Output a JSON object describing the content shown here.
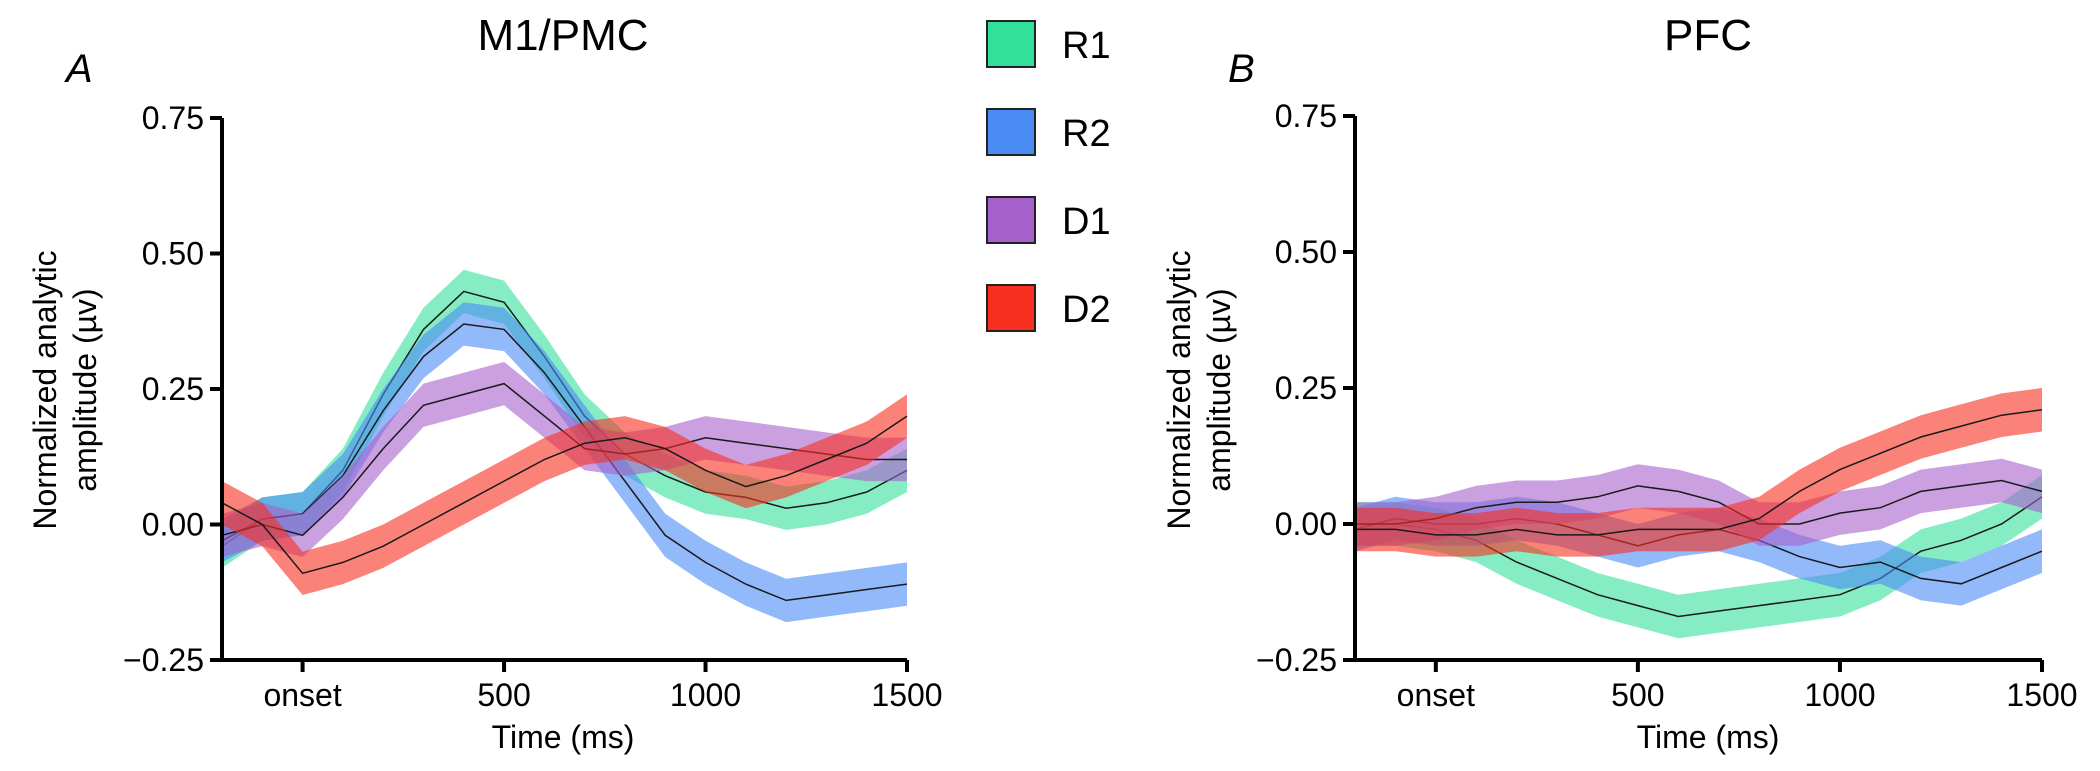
{
  "legend": [
    {
      "label": "R1",
      "color": "#33e09b"
    },
    {
      "label": "R2",
      "color": "#4a8af5"
    },
    {
      "label": "D1",
      "color": "#a660cc"
    },
    {
      "label": "D2",
      "color": "#f82e1e"
    }
  ],
  "chart_data": [
    {
      "type": "line",
      "panel_letter": "A",
      "title": "M1/PMC",
      "xlabel": "Time (ms)",
      "ylabel_line1": "Normalized analytic",
      "ylabel_line2": "amplitude (µv)",
      "xlim": [
        -200,
        1500
      ],
      "ylim": [
        -0.25,
        0.75
      ],
      "x_ticks": [
        {
          "value": 0,
          "label": "onset"
        },
        {
          "value": 500,
          "label": "500"
        },
        {
          "value": 1000,
          "label": "1000"
        },
        {
          "value": 1500,
          "label": "1500"
        }
      ],
      "y_ticks": [
        {
          "value": 0.75,
          "label": "0.75"
        },
        {
          "value": 0.5,
          "label": "0.50"
        },
        {
          "value": 0.25,
          "label": "0.25"
        },
        {
          "value": 0,
          "label": "0.00"
        },
        {
          "value": -0.25,
          "label": "−0.25"
        }
      ],
      "x": [
        -200,
        -100,
        0,
        100,
        200,
        300,
        400,
        500,
        600,
        700,
        800,
        900,
        1000,
        1100,
        1200,
        1300,
        1400,
        1500
      ],
      "series": [
        {
          "name": "R1",
          "color": "#33e09b",
          "halfwidth": 0.04,
          "values": [
            -0.04,
            0.01,
            0.02,
            0.1,
            0.24,
            0.36,
            0.43,
            0.41,
            0.31,
            0.2,
            0.13,
            0.09,
            0.06,
            0.05,
            0.03,
            0.04,
            0.06,
            0.1
          ]
        },
        {
          "name": "R2",
          "color": "#4a8af5",
          "halfwidth": 0.04,
          "values": [
            -0.03,
            0.01,
            0.02,
            0.09,
            0.21,
            0.31,
            0.37,
            0.36,
            0.28,
            0.18,
            0.08,
            -0.02,
            -0.07,
            -0.11,
            -0.14,
            -0.13,
            -0.12,
            -0.11
          ]
        },
        {
          "name": "D1",
          "color": "#a660cc",
          "halfwidth": 0.04,
          "values": [
            -0.02,
            0.0,
            -0.02,
            0.05,
            0.14,
            0.22,
            0.24,
            0.26,
            0.2,
            0.14,
            0.13,
            0.14,
            0.16,
            0.15,
            0.14,
            0.13,
            0.12,
            0.12
          ]
        },
        {
          "name": "D2",
          "color": "#f82e1e",
          "halfwidth": 0.04,
          "values": [
            0.04,
            0.0,
            -0.09,
            -0.07,
            -0.04,
            0.0,
            0.04,
            0.08,
            0.12,
            0.15,
            0.16,
            0.14,
            0.1,
            0.07,
            0.09,
            0.12,
            0.15,
            0.2
          ]
        }
      ]
    },
    {
      "type": "line",
      "panel_letter": "B",
      "title": "PFC",
      "xlabel": "Time (ms)",
      "ylabel_line1": "Normalized analytic",
      "ylabel_line2": "amplitude (µv)",
      "xlim": [
        -200,
        1500
      ],
      "ylim": [
        -0.25,
        0.75
      ],
      "x_ticks": [
        {
          "value": 0,
          "label": "onset"
        },
        {
          "value": 500,
          "label": "500"
        },
        {
          "value": 1000,
          "label": "1000"
        },
        {
          "value": 1500,
          "label": "1500"
        }
      ],
      "y_ticks": [
        {
          "value": 0.75,
          "label": "0.75"
        },
        {
          "value": 0.5,
          "label": "0.50"
        },
        {
          "value": 0.25,
          "label": "0.25"
        },
        {
          "value": 0,
          "label": "0.00"
        },
        {
          "value": -0.25,
          "label": "−0.25"
        }
      ],
      "x": [
        -200,
        -100,
        0,
        100,
        200,
        300,
        400,
        500,
        600,
        700,
        800,
        900,
        1000,
        1100,
        1200,
        1300,
        1400,
        1500
      ],
      "series": [
        {
          "name": "R1",
          "color": "#33e09b",
          "halfwidth": 0.04,
          "values": [
            0.0,
            0.0,
            -0.01,
            -0.03,
            -0.07,
            -0.1,
            -0.13,
            -0.15,
            -0.17,
            -0.16,
            -0.15,
            -0.14,
            -0.13,
            -0.1,
            -0.05,
            -0.03,
            0.0,
            0.05
          ]
        },
        {
          "name": "R2",
          "color": "#4a8af5",
          "halfwidth": 0.04,
          "values": [
            -0.01,
            0.01,
            0.0,
            0.0,
            0.01,
            0.0,
            -0.02,
            -0.04,
            -0.02,
            -0.01,
            -0.03,
            -0.06,
            -0.08,
            -0.07,
            -0.1,
            -0.11,
            -0.08,
            -0.05
          ]
        },
        {
          "name": "D1",
          "color": "#a660cc",
          "halfwidth": 0.04,
          "values": [
            0.0,
            0.0,
            0.01,
            0.03,
            0.04,
            0.04,
            0.05,
            0.07,
            0.06,
            0.04,
            0.0,
            0.0,
            0.02,
            0.03,
            0.06,
            0.07,
            0.08,
            0.06
          ]
        },
        {
          "name": "D2",
          "color": "#f82e1e",
          "halfwidth": 0.04,
          "values": [
            -0.01,
            -0.01,
            -0.02,
            -0.02,
            -0.01,
            -0.02,
            -0.02,
            -0.01,
            -0.01,
            -0.01,
            0.01,
            0.06,
            0.1,
            0.13,
            0.16,
            0.18,
            0.2,
            0.21
          ]
        }
      ]
    }
  ]
}
